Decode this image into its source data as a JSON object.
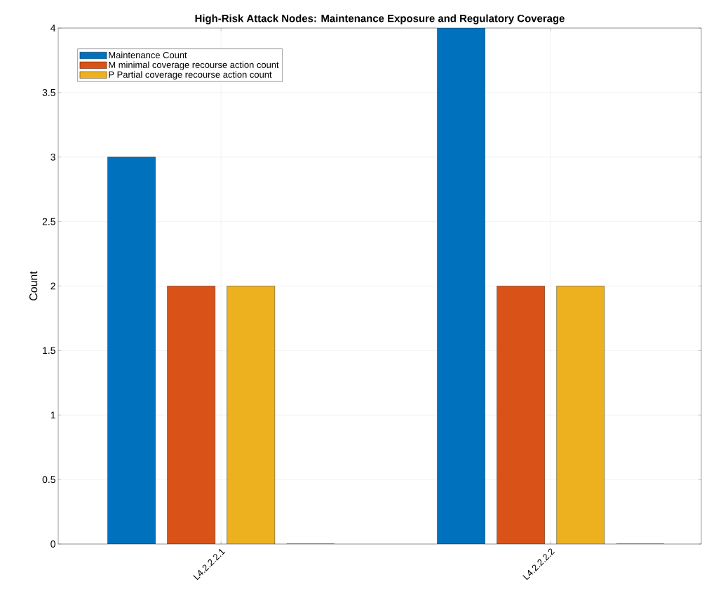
{
  "chart_data": {
    "type": "bar",
    "title": "High-Risk Attack Nodes: Maintenance Exposure and Regulatory Coverage",
    "ylabel": "Count",
    "categories": [
      "L4.2.2.2.1",
      "L4.2.2.2.2"
    ],
    "series": [
      {
        "name": "Maintenance Count",
        "color": "#0072bd",
        "values": [
          3,
          4
        ]
      },
      {
        "name": "M minimal coverage recourse action count",
        "color": "#d95319",
        "values": [
          2,
          2
        ]
      },
      {
        "name": "P Partial coverage recourse action count",
        "color": "#edb120",
        "values": [
          2,
          2
        ]
      },
      {
        "color": "#7e2f8e",
        "values": [
          0,
          0
        ]
      }
    ],
    "ylim": [
      0,
      4
    ],
    "yticks": [
      0,
      0.5,
      1,
      1.5,
      2,
      2.5,
      3,
      3.5,
      4
    ],
    "grid": true,
    "legend": "top left"
  }
}
